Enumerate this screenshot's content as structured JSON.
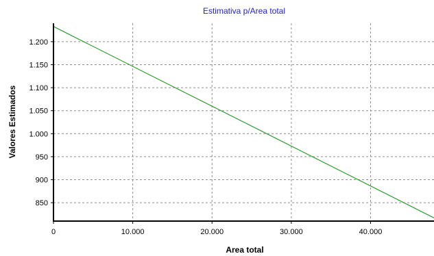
{
  "chart_data": {
    "type": "line",
    "title": "Estimativa p/Area total",
    "xlabel": "Area total",
    "ylabel": "Valores Estimados",
    "xlim": [
      0,
      48000
    ],
    "ylim": [
      810,
      1240
    ],
    "x_ticks": [
      0,
      10000,
      20000,
      30000,
      40000
    ],
    "x_tick_labels": [
      "0",
      "10.000",
      "20.000",
      "30.000",
      "40.000"
    ],
    "y_ticks": [
      850,
      900,
      950,
      1000,
      1050,
      1100,
      1150,
      1200
    ],
    "y_tick_labels": [
      "850",
      "900",
      "950",
      "1.000",
      "1.050",
      "1.100",
      "1.150",
      "1.200"
    ],
    "grid": true,
    "series": [
      {
        "x": [
          0,
          48000
        ],
        "y": [
          1233,
          817
        ],
        "color": "#2e9e2e"
      }
    ]
  }
}
